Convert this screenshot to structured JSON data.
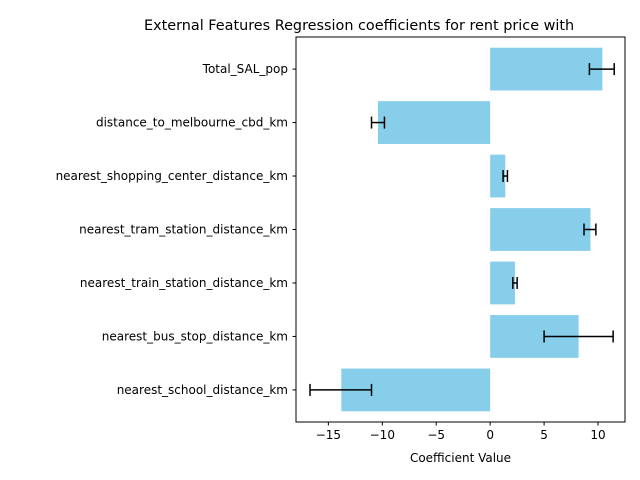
{
  "chart_data": {
    "type": "bar",
    "orientation": "horizontal",
    "title": "External Features Regression coefficients for rent price with",
    "xlabel": "Coefficient Value",
    "ylabel": "",
    "xlim": [
      -18,
      12.5
    ],
    "xticks": [
      -15,
      -10,
      -5,
      0,
      5,
      10
    ],
    "xtick_labels": [
      "−15",
      "−10",
      "−5",
      "0",
      "5",
      "10"
    ],
    "categories": [
      "nearest_school_distance_km",
      "nearest_bus_stop_distance_km",
      "nearest_train_station_distance_km",
      "nearest_tram_station_distance_km",
      "nearest_shopping_center_distance_km",
      "distance_to_melbourne_cbd_km",
      "Total_SAL_pop"
    ],
    "values": [
      -13.8,
      8.2,
      2.3,
      9.3,
      1.4,
      -10.4,
      10.4
    ],
    "error_low": [
      -16.7,
      5.0,
      2.1,
      8.7,
      1.2,
      -11.0,
      9.2
    ],
    "error_high": [
      -11.0,
      11.4,
      2.5,
      9.8,
      1.6,
      -9.8,
      11.5
    ],
    "bar_color": "#87ceeb",
    "error_color": "#000000",
    "grid": false,
    "legend": "none"
  }
}
